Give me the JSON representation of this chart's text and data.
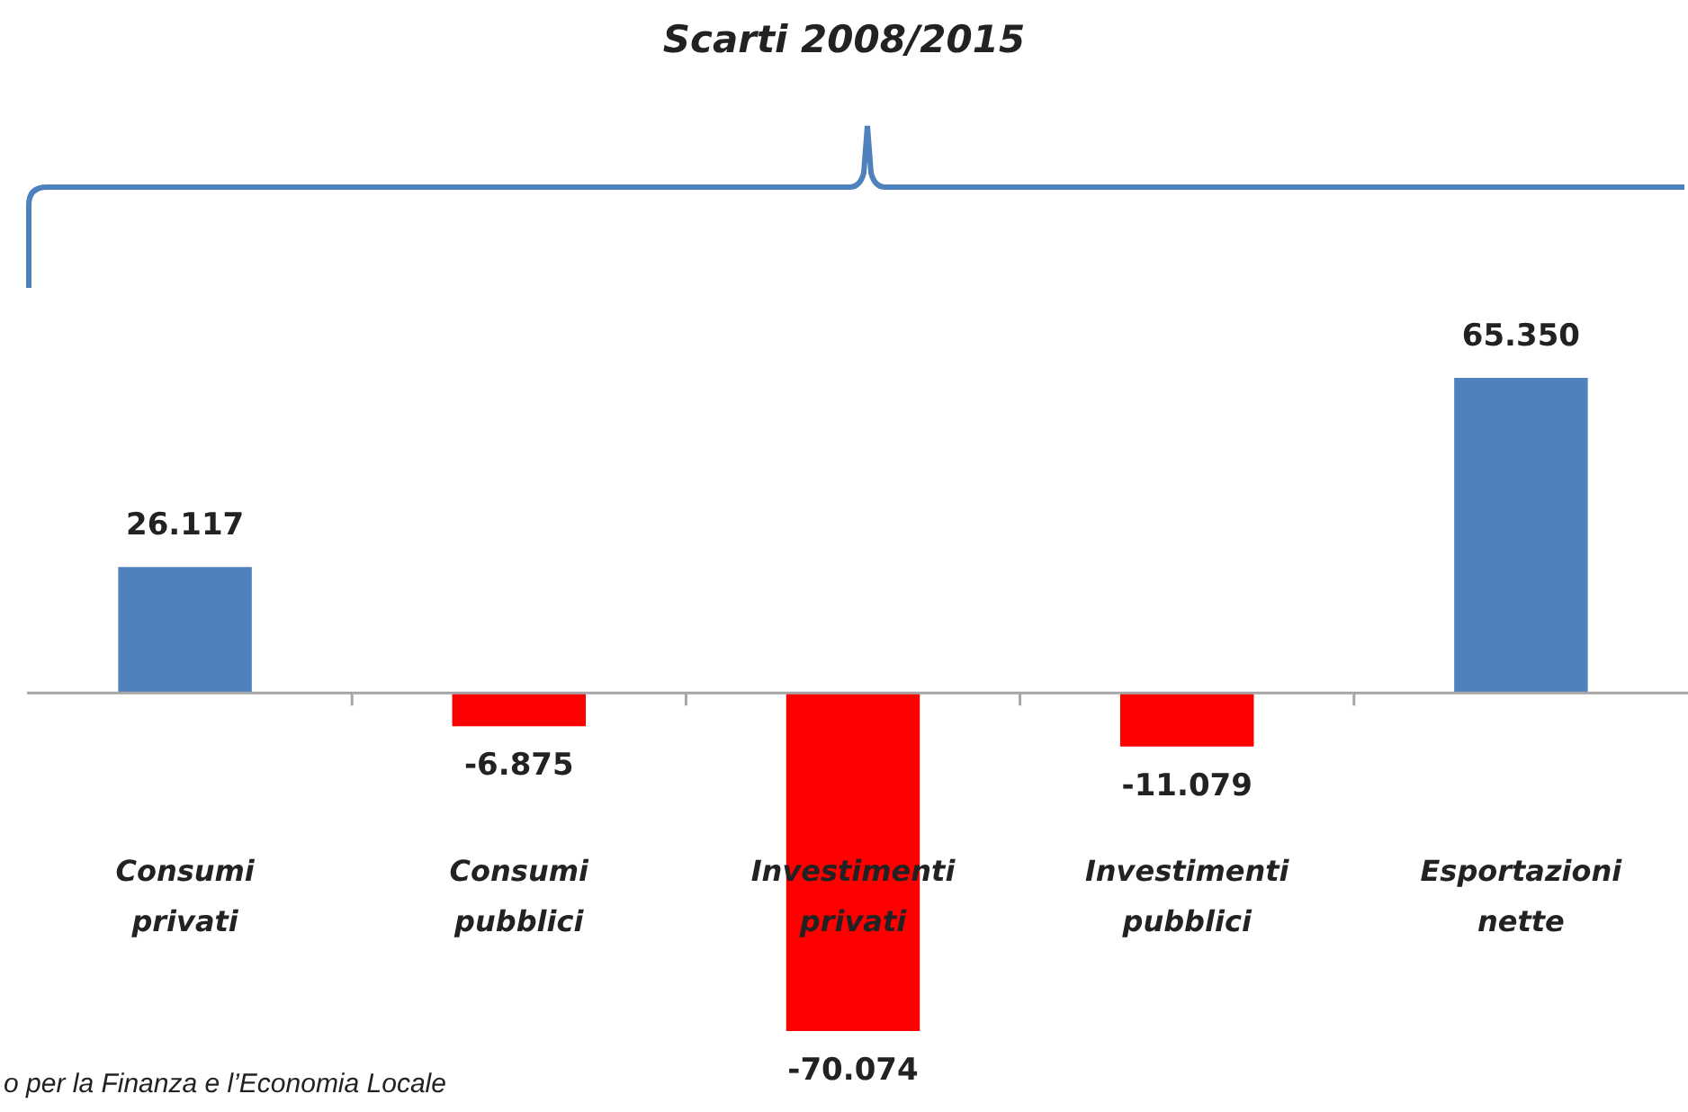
{
  "chart_data": {
    "type": "bar",
    "title": "Scarti 2008/2015",
    "categories": [
      "Consumi privati",
      "Consumi pubblici",
      "Investimenti privati",
      "Investimenti pubblici",
      "Esportazioni nette"
    ],
    "values": [
      26117,
      -6875,
      -70074,
      -11079,
      65350
    ],
    "colors": [
      "#4f81bd",
      "#ff0000",
      "#ff0000",
      "#ff0000",
      "#4f81bd"
    ],
    "value_labels": [
      "26.117",
      "-6.875",
      "-70.074",
      "-11.079",
      "65.350"
    ],
    "annotations": [
      "o per la Finanza e l’Economia Locale"
    ],
    "legend": false
  }
}
